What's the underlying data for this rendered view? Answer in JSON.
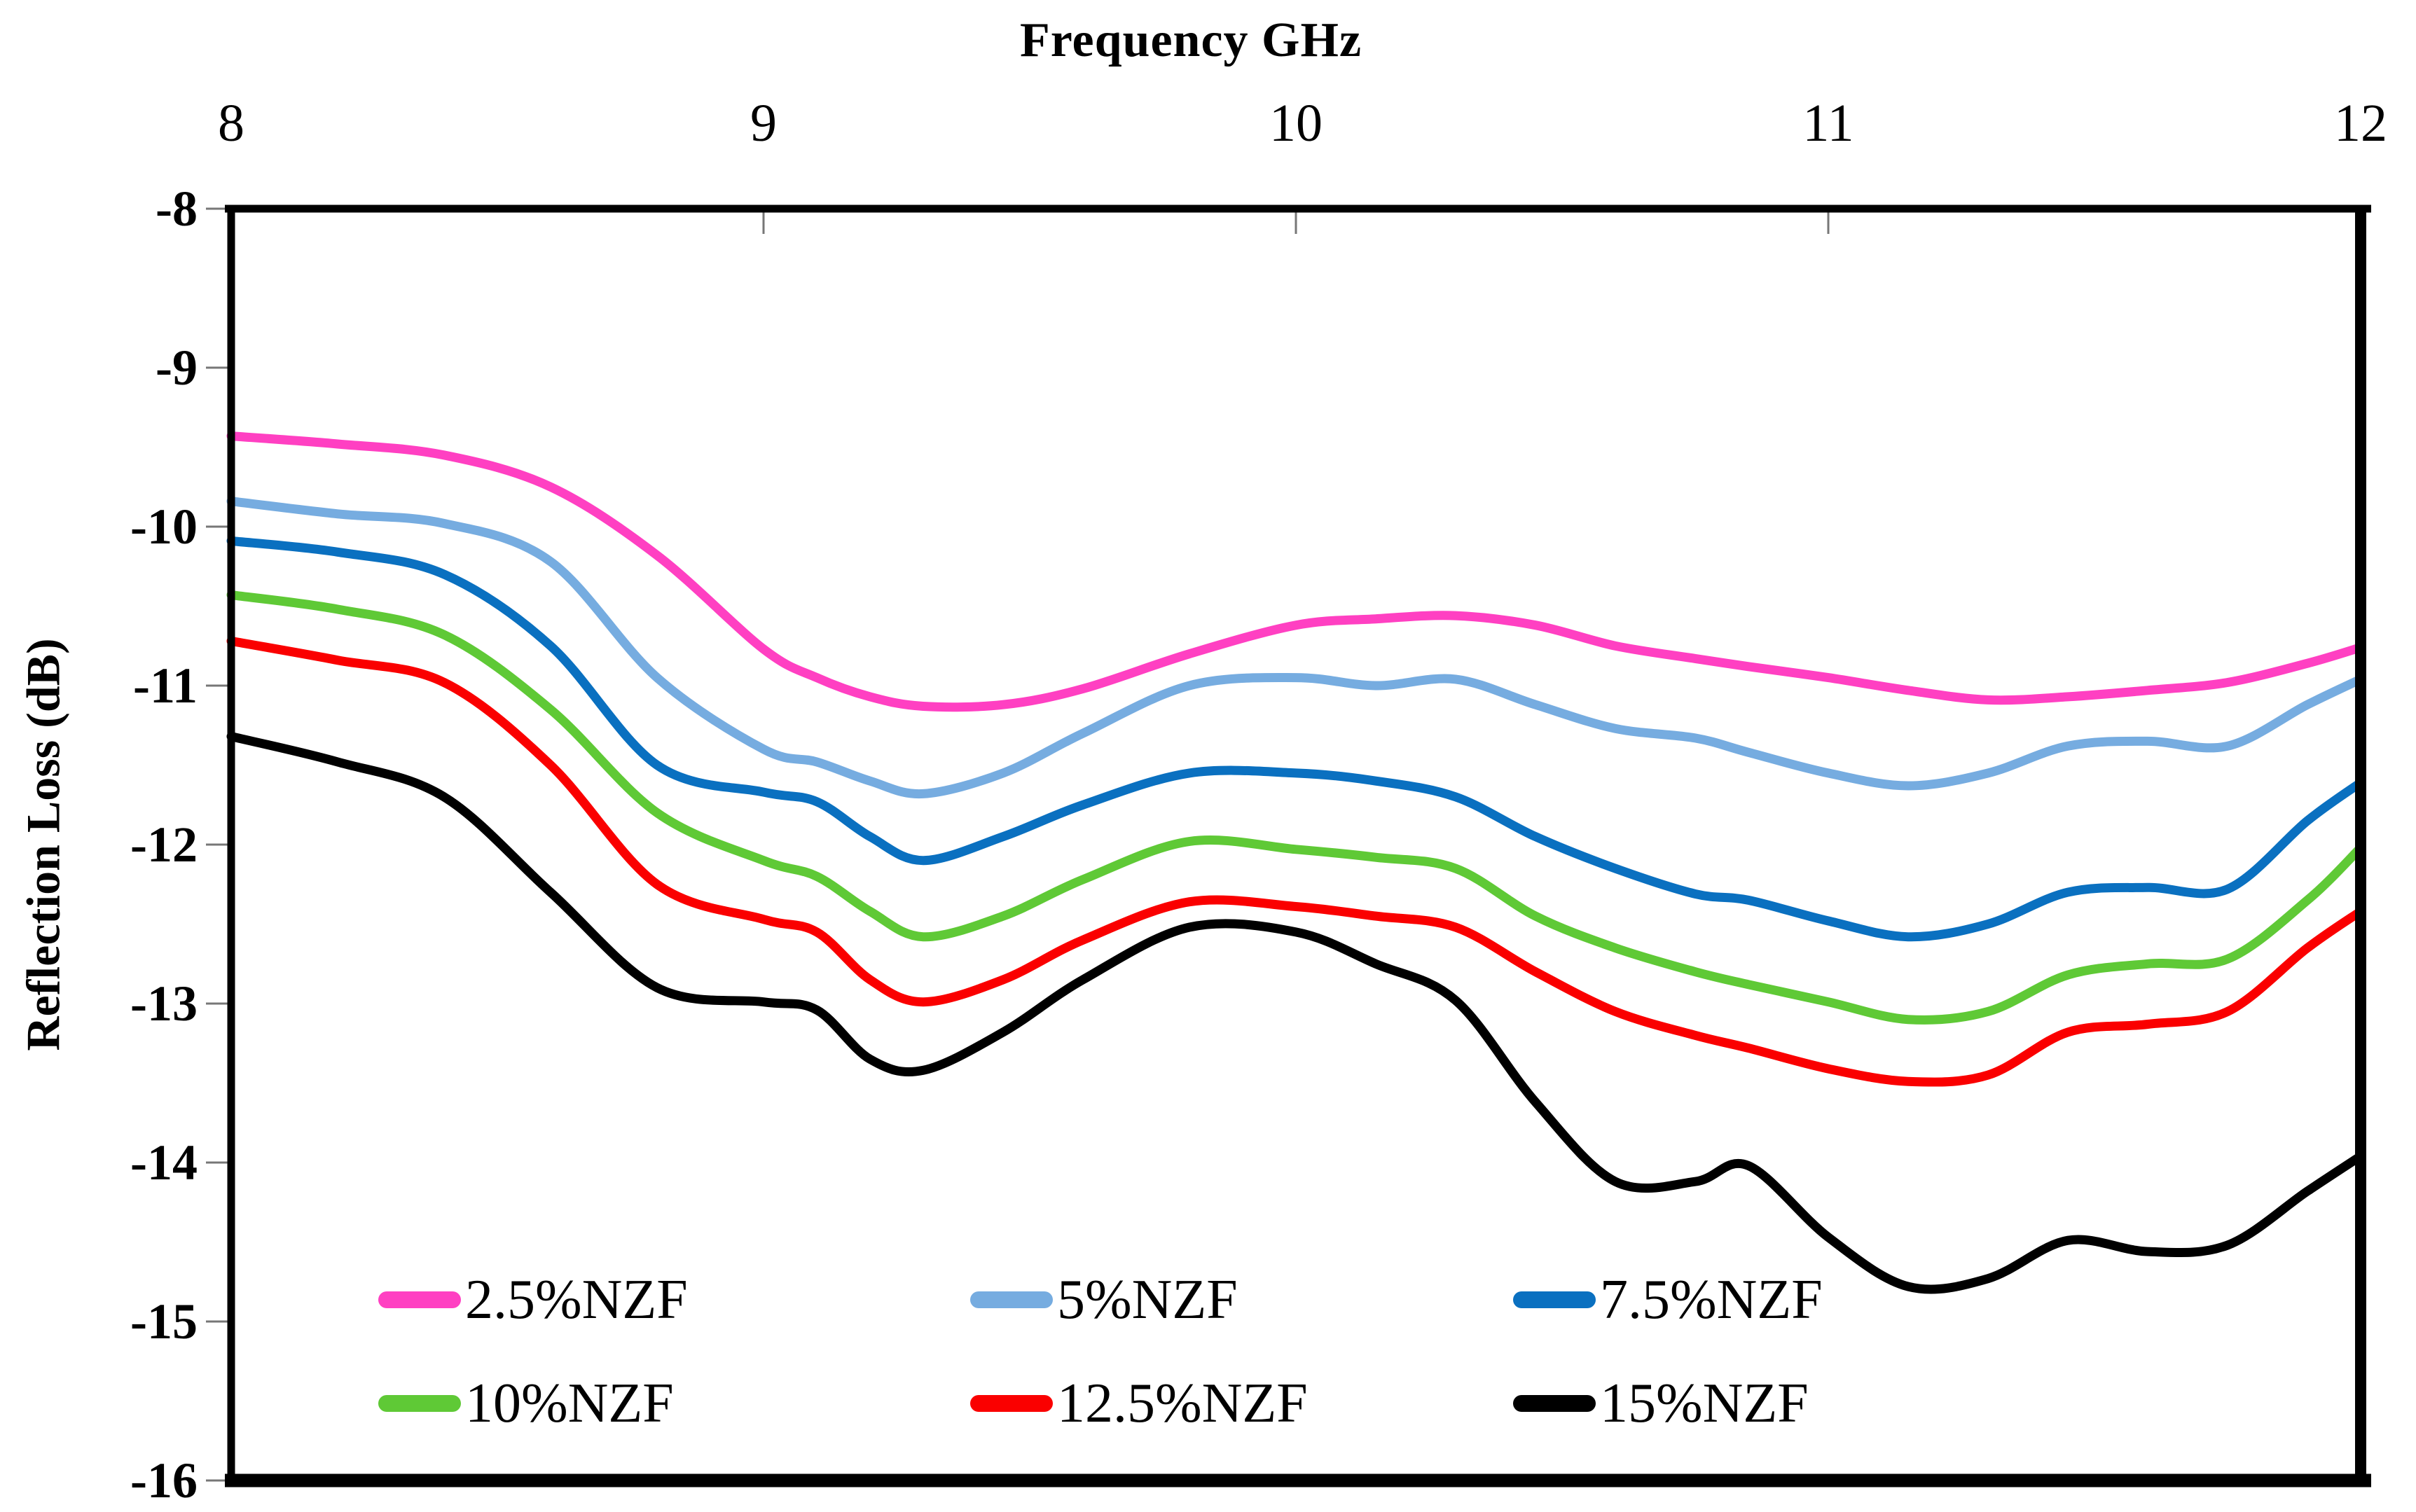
{
  "chart_data": {
    "type": "line",
    "title": "",
    "xlabel": "Frequency GHz",
    "ylabel": "Reflection Loss (dB)",
    "xlim": [
      8,
      12
    ],
    "ylim": [
      -16,
      -8
    ],
    "grid": false,
    "legend_position": "inside-bottom",
    "x_ticks": [
      8,
      9,
      10,
      11,
      12
    ],
    "x_tick_labels": [
      "8",
      "9",
      "10",
      "11",
      "12"
    ],
    "y_ticks": [
      -8,
      -9,
      -10,
      -11,
      -12,
      -13,
      -14,
      -15,
      -16
    ],
    "y_tick_labels": [
      "-8",
      "-9",
      "-10",
      "-11",
      "-12",
      "-13",
      "-14",
      "-15",
      "-16"
    ],
    "frame_color": "#000000",
    "tick_color": "#777777",
    "x": [
      8.0,
      8.2,
      8.4,
      8.6,
      8.8,
      9.0,
      9.1,
      9.2,
      9.3,
      9.45,
      9.6,
      9.8,
      10.0,
      10.15,
      10.3,
      10.45,
      10.6,
      10.75,
      10.85,
      11.0,
      11.15,
      11.3,
      11.45,
      11.6,
      11.75,
      11.9,
      12.0
    ],
    "series": [
      {
        "name": "2.5%NZF",
        "color": "#FF40C2",
        "values": [
          -9.43,
          -9.48,
          -9.55,
          -9.75,
          -10.18,
          -10.77,
          -10.95,
          -11.07,
          -11.13,
          -11.12,
          -11.02,
          -10.8,
          -10.62,
          -10.58,
          -10.56,
          -10.62,
          -10.75,
          -10.83,
          -10.88,
          -10.95,
          -11.03,
          -11.09,
          -11.07,
          -11.03,
          -10.98,
          -10.86,
          -10.76
        ]
      },
      {
        "name": "5%NZF",
        "color": "#76ACE0",
        "values": [
          -9.84,
          -9.92,
          -9.98,
          -10.22,
          -10.95,
          -11.4,
          -11.48,
          -11.6,
          -11.68,
          -11.55,
          -11.3,
          -11.0,
          -10.95,
          -11.0,
          -10.96,
          -11.12,
          -11.27,
          -11.33,
          -11.42,
          -11.55,
          -11.63,
          -11.55,
          -11.38,
          -11.35,
          -11.38,
          -11.12,
          -10.96
        ]
      },
      {
        "name": "7.5%NZF",
        "color": "#0A70C0",
        "values": [
          -10.09,
          -10.16,
          -10.3,
          -10.75,
          -11.5,
          -11.67,
          -11.73,
          -11.95,
          -12.1,
          -11.95,
          -11.75,
          -11.55,
          -11.55,
          -11.6,
          -11.7,
          -11.95,
          -12.15,
          -12.31,
          -12.35,
          -12.48,
          -12.58,
          -12.5,
          -12.3,
          -12.27,
          -12.28,
          -11.85,
          -11.61
        ]
      },
      {
        "name": "10%NZF",
        "color": "#5FC936",
        "values": [
          -10.43,
          -10.52,
          -10.68,
          -11.15,
          -11.8,
          -12.1,
          -12.2,
          -12.42,
          -12.58,
          -12.45,
          -12.22,
          -11.98,
          -12.03,
          -12.08,
          -12.15,
          -12.45,
          -12.65,
          -12.8,
          -12.88,
          -12.99,
          -13.1,
          -13.05,
          -12.82,
          -12.75,
          -12.72,
          -12.35,
          -12.02
        ]
      },
      {
        "name": "12.5%NZF",
        "color": "#FA0000",
        "values": [
          -10.72,
          -10.84,
          -10.98,
          -11.5,
          -12.25,
          -12.47,
          -12.55,
          -12.85,
          -12.99,
          -12.85,
          -12.6,
          -12.36,
          -12.39,
          -12.45,
          -12.52,
          -12.8,
          -13.05,
          -13.2,
          -13.28,
          -13.41,
          -13.49,
          -13.45,
          -13.18,
          -13.13,
          -13.05,
          -12.65,
          -12.42
        ]
      },
      {
        "name": "15%NZF",
        "color": "#000000",
        "values": [
          -11.32,
          -11.48,
          -11.7,
          -12.3,
          -12.9,
          -12.99,
          -13.04,
          -13.35,
          -13.42,
          -13.18,
          -12.85,
          -12.52,
          -12.55,
          -12.75,
          -12.98,
          -13.62,
          -14.12,
          -14.12,
          -14.02,
          -14.47,
          -14.78,
          -14.73,
          -14.49,
          -14.56,
          -14.52,
          -14.18,
          -13.96
        ]
      }
    ]
  }
}
